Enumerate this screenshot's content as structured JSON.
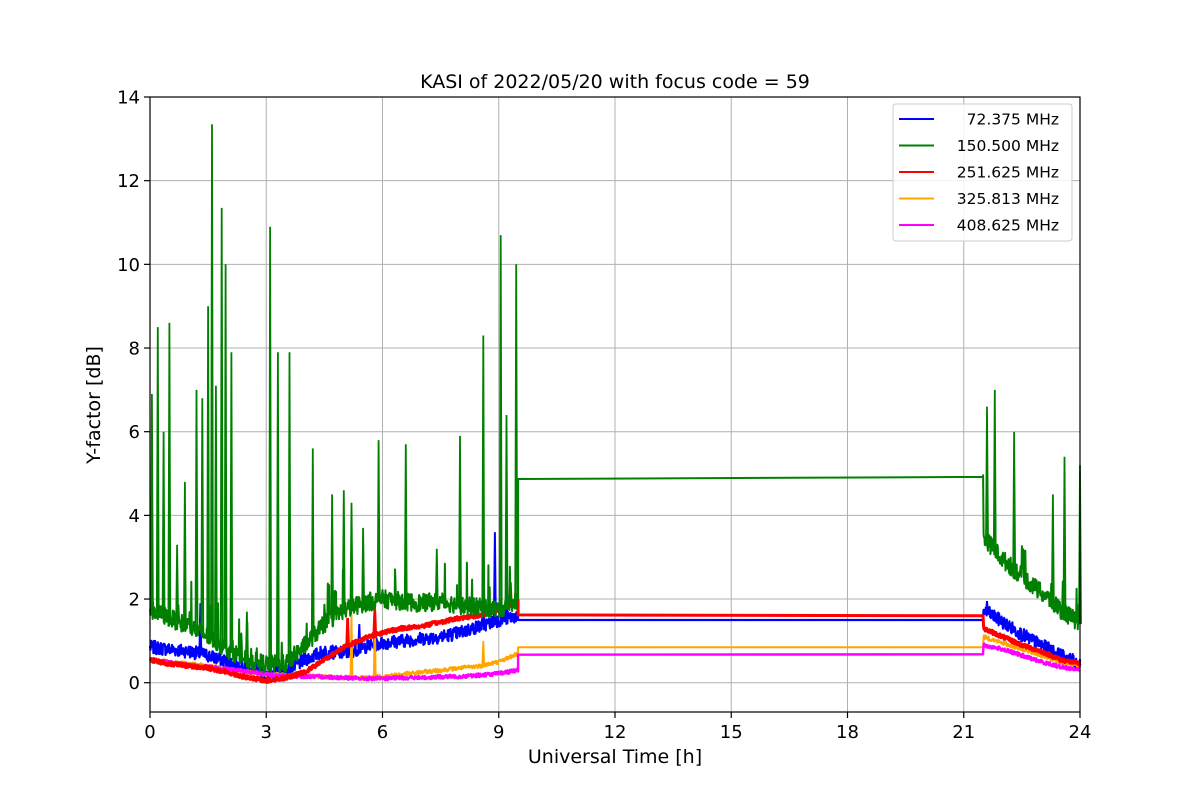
{
  "chart_data": {
    "type": "line",
    "title": "KASI of 2022/05/20 with focus code = 59",
    "xlabel": "Universal Time [h]",
    "ylabel": "Y-factor [dB]",
    "xlim": [
      0,
      24
    ],
    "ylim": [
      -0.7,
      14
    ],
    "xticks": [
      0,
      3,
      6,
      9,
      12,
      15,
      18,
      21,
      24
    ],
    "yticks": [
      0,
      2,
      4,
      6,
      8,
      10,
      12,
      14
    ],
    "xtick_labels": [
      "0",
      "3",
      "6",
      "9",
      "12",
      "15",
      "18",
      "21",
      "24"
    ],
    "ytick_labels": [
      "0",
      "2",
      "4",
      "6",
      "8",
      "10",
      "12",
      "14"
    ],
    "grid": true,
    "legend_position": "top-right",
    "series": [
      {
        "name": "72.375 MHz",
        "color": "#0000ff",
        "x": [
          0,
          0.5,
          1.0,
          1.5,
          2.0,
          2.5,
          3.0,
          3.5,
          4.0,
          4.5,
          5.0,
          5.5,
          6.0,
          6.5,
          7.0,
          7.5,
          8.0,
          8.5,
          9.0,
          9.5,
          9.5,
          21.5,
          21.5,
          22.0,
          22.5,
          23.0,
          23.5,
          24.0
        ],
        "y": [
          0.85,
          0.8,
          0.75,
          0.65,
          0.5,
          0.35,
          0.25,
          0.25,
          0.55,
          0.75,
          0.7,
          0.85,
          0.95,
          1.0,
          1.05,
          1.1,
          1.2,
          1.35,
          1.5,
          1.6,
          1.5,
          1.5,
          1.75,
          1.45,
          1.15,
          0.9,
          0.65,
          0.45
        ],
        "spikes": [
          [
            1.3,
            1.9
          ],
          [
            5.4,
            1.4
          ],
          [
            5.8,
            1.9
          ],
          [
            8.6,
            3.3
          ],
          [
            8.9,
            3.6
          ],
          [
            9.2,
            2.3
          ],
          [
            21.6,
            1.95
          ]
        ]
      },
      {
        "name": "150.500 MHz",
        "color": "#008000",
        "x": [
          0,
          0.5,
          1.0,
          1.5,
          2.0,
          2.5,
          3.0,
          3.5,
          4.0,
          4.5,
          5.0,
          5.5,
          6.0,
          6.5,
          7.0,
          7.5,
          8.0,
          8.5,
          9.0,
          9.5,
          9.5,
          21.5,
          21.5,
          22.0,
          22.5,
          23.0,
          23.5,
          24.0
        ],
        "y": [
          1.75,
          1.55,
          1.35,
          1.1,
          0.8,
          0.55,
          0.45,
          0.45,
          0.9,
          1.4,
          1.75,
          1.9,
          2.0,
          1.95,
          1.9,
          1.95,
          1.85,
          1.8,
          1.75,
          2.0,
          4.87,
          4.92,
          3.5,
          2.95,
          2.55,
          2.15,
          1.75,
          1.4
        ],
        "spikes": [
          [
            0.05,
            6.9
          ],
          [
            0.2,
            8.5
          ],
          [
            0.35,
            6.0
          ],
          [
            0.5,
            8.6
          ],
          [
            0.7,
            3.3
          ],
          [
            0.9,
            4.8
          ],
          [
            1.2,
            7.0
          ],
          [
            1.35,
            6.8
          ],
          [
            1.5,
            9.0
          ],
          [
            1.6,
            13.35
          ],
          [
            1.7,
            7.1
          ],
          [
            1.85,
            11.35
          ],
          [
            1.95,
            10.0
          ],
          [
            2.1,
            7.9
          ],
          [
            2.5,
            1.7
          ],
          [
            3.1,
            10.9
          ],
          [
            3.3,
            7.9
          ],
          [
            3.6,
            7.9
          ],
          [
            4.2,
            5.6
          ],
          [
            4.7,
            4.5
          ],
          [
            5.0,
            4.6
          ],
          [
            5.2,
            4.3
          ],
          [
            5.5,
            3.7
          ],
          [
            5.9,
            5.8
          ],
          [
            6.6,
            5.7
          ],
          [
            7.4,
            3.2
          ],
          [
            8.0,
            5.9
          ],
          [
            8.6,
            8.3
          ],
          [
            9.05,
            10.7
          ],
          [
            9.2,
            6.4
          ],
          [
            9.45,
            10.0
          ],
          [
            21.6,
            6.6
          ],
          [
            21.8,
            7.0
          ],
          [
            22.3,
            6.0
          ],
          [
            23.3,
            4.5
          ],
          [
            23.6,
            5.4
          ],
          [
            24.0,
            5.2
          ]
        ]
      },
      {
        "name": "251.625 MHz",
        "color": "#ff0000",
        "x": [
          0,
          0.5,
          1.0,
          1.5,
          2.0,
          2.5,
          3.0,
          3.5,
          4.0,
          4.5,
          5.0,
          5.5,
          6.0,
          6.5,
          7.0,
          7.5,
          8.0,
          8.5,
          9.0,
          9.5,
          9.5,
          21.5,
          21.5,
          22.0,
          22.5,
          23.0,
          23.5,
          24.0
        ],
        "y": [
          0.55,
          0.45,
          0.4,
          0.35,
          0.25,
          0.12,
          0.05,
          0.12,
          0.25,
          0.55,
          0.85,
          1.05,
          1.2,
          1.3,
          1.35,
          1.45,
          1.55,
          1.6,
          1.75,
          1.95,
          1.62,
          1.6,
          1.3,
          1.1,
          0.9,
          0.75,
          0.55,
          0.45
        ],
        "spikes": [
          [
            5.1,
            1.55
          ],
          [
            5.8,
            1.75
          ],
          [
            9.3,
            2.4
          ]
        ]
      },
      {
        "name": "325.813 MHz",
        "color": "#ffa500",
        "x": [
          0,
          0.5,
          1.0,
          1.5,
          2.0,
          2.5,
          3.0,
          3.5,
          4.0,
          4.5,
          5.0,
          5.5,
          6.0,
          6.5,
          7.0,
          7.5,
          8.0,
          8.5,
          9.0,
          9.5,
          9.5,
          21.5,
          21.5,
          22.0,
          22.5,
          23.0,
          23.5,
          24.0
        ],
        "y": [
          0.55,
          0.5,
          0.45,
          0.4,
          0.32,
          0.25,
          0.2,
          0.18,
          0.16,
          0.14,
          0.12,
          0.12,
          0.15,
          0.2,
          0.25,
          0.3,
          0.35,
          0.4,
          0.5,
          0.7,
          0.85,
          0.85,
          1.1,
          0.95,
          0.8,
          0.65,
          0.5,
          0.4
        ],
        "spikes": [
          [
            5.2,
            1.65
          ],
          [
            5.8,
            1.9
          ],
          [
            8.6,
            1.0
          ]
        ]
      },
      {
        "name": "408.625 MHz",
        "color": "#ff00ff",
        "x": [
          0,
          0.5,
          1.0,
          1.5,
          2.0,
          2.5,
          3.0,
          3.5,
          4.0,
          4.5,
          5.0,
          5.5,
          6.0,
          6.5,
          7.0,
          7.5,
          8.0,
          8.5,
          9.0,
          9.5,
          9.5,
          21.5,
          21.5,
          22.0,
          22.5,
          23.0,
          23.5,
          24.0
        ],
        "y": [
          0.55,
          0.48,
          0.42,
          0.38,
          0.32,
          0.27,
          0.2,
          0.15,
          0.15,
          0.14,
          0.12,
          0.1,
          0.1,
          0.12,
          0.12,
          0.14,
          0.15,
          0.18,
          0.22,
          0.3,
          0.67,
          0.68,
          0.9,
          0.8,
          0.65,
          0.5,
          0.38,
          0.3
        ],
        "spikes": []
      }
    ]
  }
}
